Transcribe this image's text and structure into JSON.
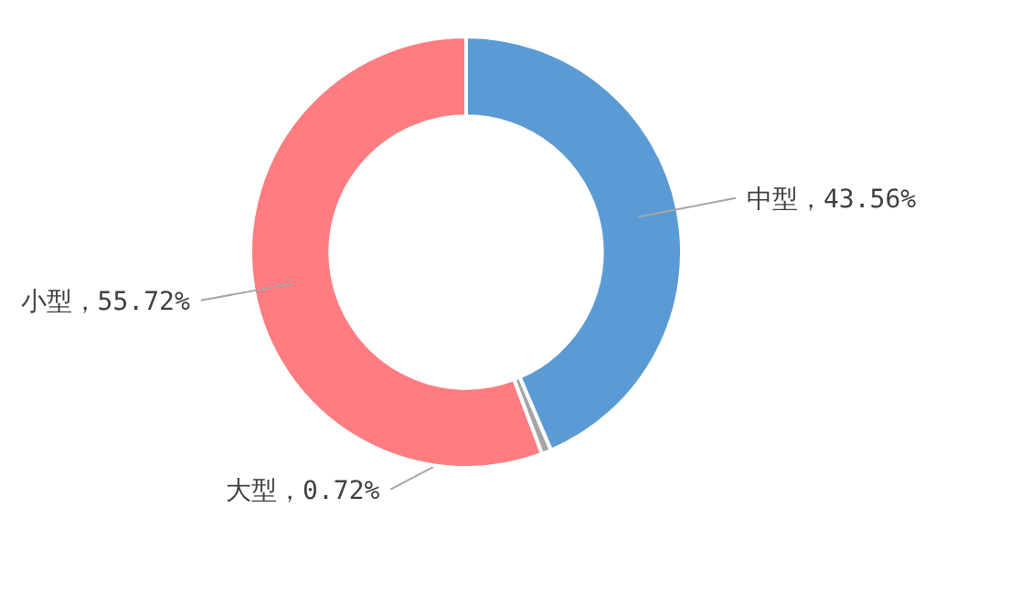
{
  "chart_data": {
    "type": "donut",
    "categories": [
      "中型",
      "大型",
      "小型"
    ],
    "values": [
      43.56,
      0.72,
      55.72
    ],
    "value_labels": [
      "43.56%",
      "0.72%",
      "55.72%"
    ],
    "colors": [
      "#5b9bd5",
      "#a5a5a5",
      "#ff7c80"
    ]
  }
}
